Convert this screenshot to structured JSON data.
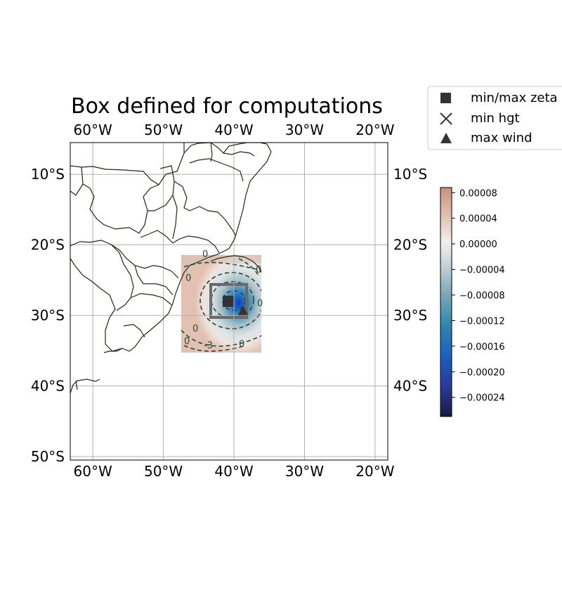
{
  "title": "Box defined for computations",
  "map": {
    "lon_range": [
      -63.2,
      -18.2
    ],
    "lat_range": [
      -50.5,
      -5.5
    ],
    "top_ticks": [
      "60°W",
      "50°W",
      "40°W",
      "30°W",
      "20°W"
    ],
    "bottom_ticks": [
      "60°W",
      "50°W",
      "40°W",
      "30°W",
      "20°W"
    ],
    "left_ticks": [
      "10°S",
      "20°S",
      "30°S",
      "40°S",
      "50°S"
    ],
    "right_ticks": [
      "10°S",
      "20°S",
      "30°S",
      "40°S"
    ],
    "gridlines": true,
    "field_extent": {
      "lon": [
        -47.5,
        -36.2
      ],
      "lat": [
        -35.0,
        -21.2
      ]
    },
    "computation_box": {
      "lon": [
        -43.4,
        -38.2
      ],
      "lat": [
        -30.0,
        -25.2
      ]
    },
    "contour_labels": [
      "0",
      "0",
      "0",
      "0",
      "0",
      "0",
      "-3",
      "0"
    ],
    "markers": [
      {
        "name": "min/max zeta",
        "shape": "square",
        "lon": -40.8,
        "lat": -27.8
      },
      {
        "name": "max wind",
        "shape": "triangle",
        "lon": -38.5,
        "lat": -29.2
      }
    ]
  },
  "legend": {
    "items": [
      {
        "label": "min/max zeta",
        "shape": "square"
      },
      {
        "label": "min hgt",
        "shape": "x"
      },
      {
        "label": "max wind",
        "shape": "triangle"
      }
    ]
  },
  "colorbar": {
    "range": [
      -0.00027,
      8.8e-05
    ],
    "ticks": [
      "0.00008",
      "0.00004",
      "0.00000",
      "−0.00004",
      "−0.00008",
      "−0.00012",
      "−0.00016",
      "−0.00020",
      "−0.00024"
    ],
    "tick_values": [
      8e-05,
      4e-05,
      0.0,
      -4e-05,
      -8e-05,
      -0.00012,
      -0.00016,
      -0.0002,
      -0.00024
    ],
    "colors": [
      "#1a1a40",
      "#2a3a9a",
      "#1a5fc0",
      "#2f86b0",
      "#7aa6b8",
      "#c4d3d8",
      "#f2eeec",
      "#e2c4b8",
      "#c98f7c"
    ]
  }
}
